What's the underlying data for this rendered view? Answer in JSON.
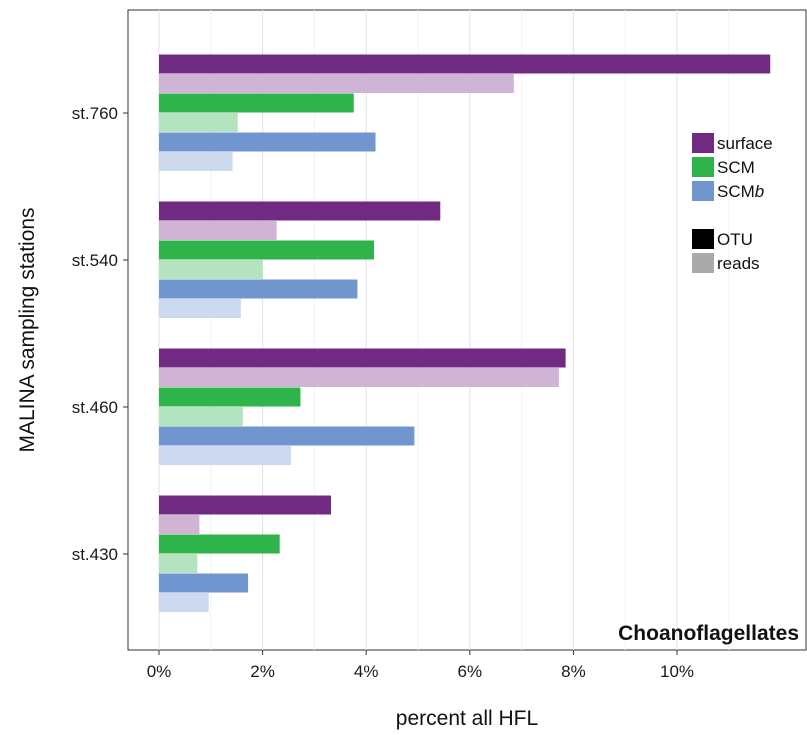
{
  "chart_data": {
    "type": "bar",
    "orientation": "horizontal",
    "title": "Choanoflagellates",
    "xlabel": "percent all HFL",
    "ylabel": "MALINA sampling stations",
    "xlim": [
      -0.6,
      12.0
    ],
    "x_ticks": [
      0,
      2,
      4,
      6,
      8,
      10
    ],
    "x_tick_labels": [
      "0%",
      "2%",
      "4%",
      "6%",
      "8%",
      "10%"
    ],
    "grid": "vertical",
    "categories": [
      "st.760",
      "st.540",
      "st.460",
      "st.430"
    ],
    "series": [
      {
        "depth": "surface",
        "metric": "OTU",
        "color": "#712a82",
        "values": [
          11.8,
          5.43,
          7.85,
          3.32
        ]
      },
      {
        "depth": "surface",
        "metric": "reads",
        "color": "#cfb4d6",
        "values": [
          6.85,
          2.27,
          7.72,
          0.78
        ]
      },
      {
        "depth": "SCM",
        "metric": "OTU",
        "color": "#2fb34b",
        "values": [
          3.76,
          4.15,
          2.73,
          2.33
        ]
      },
      {
        "depth": "SCM",
        "metric": "reads",
        "color": "#b4e4bf",
        "values": [
          1.52,
          2.0,
          1.62,
          0.74
        ]
      },
      {
        "depth": "SCMb",
        "metric": "OTU",
        "color": "#7196cf",
        "values": [
          4.18,
          3.83,
          4.93,
          1.72
        ]
      },
      {
        "depth": "SCMb",
        "metric": "reads",
        "color": "#ccd9ee",
        "values": [
          1.42,
          1.58,
          2.55,
          0.96
        ]
      }
    ],
    "legend": {
      "placement": "top-right",
      "depth_items": [
        {
          "label": "surface",
          "color": "#712a82"
        },
        {
          "label": "SCM",
          "color": "#2fb34b"
        },
        {
          "label": "SCM",
          "label_italic": "b",
          "color": "#7196cf"
        }
      ],
      "metric_items": [
        {
          "label": "OTU",
          "color": "#000000"
        },
        {
          "label": "reads",
          "color": "#aaaaaa"
        }
      ]
    }
  }
}
